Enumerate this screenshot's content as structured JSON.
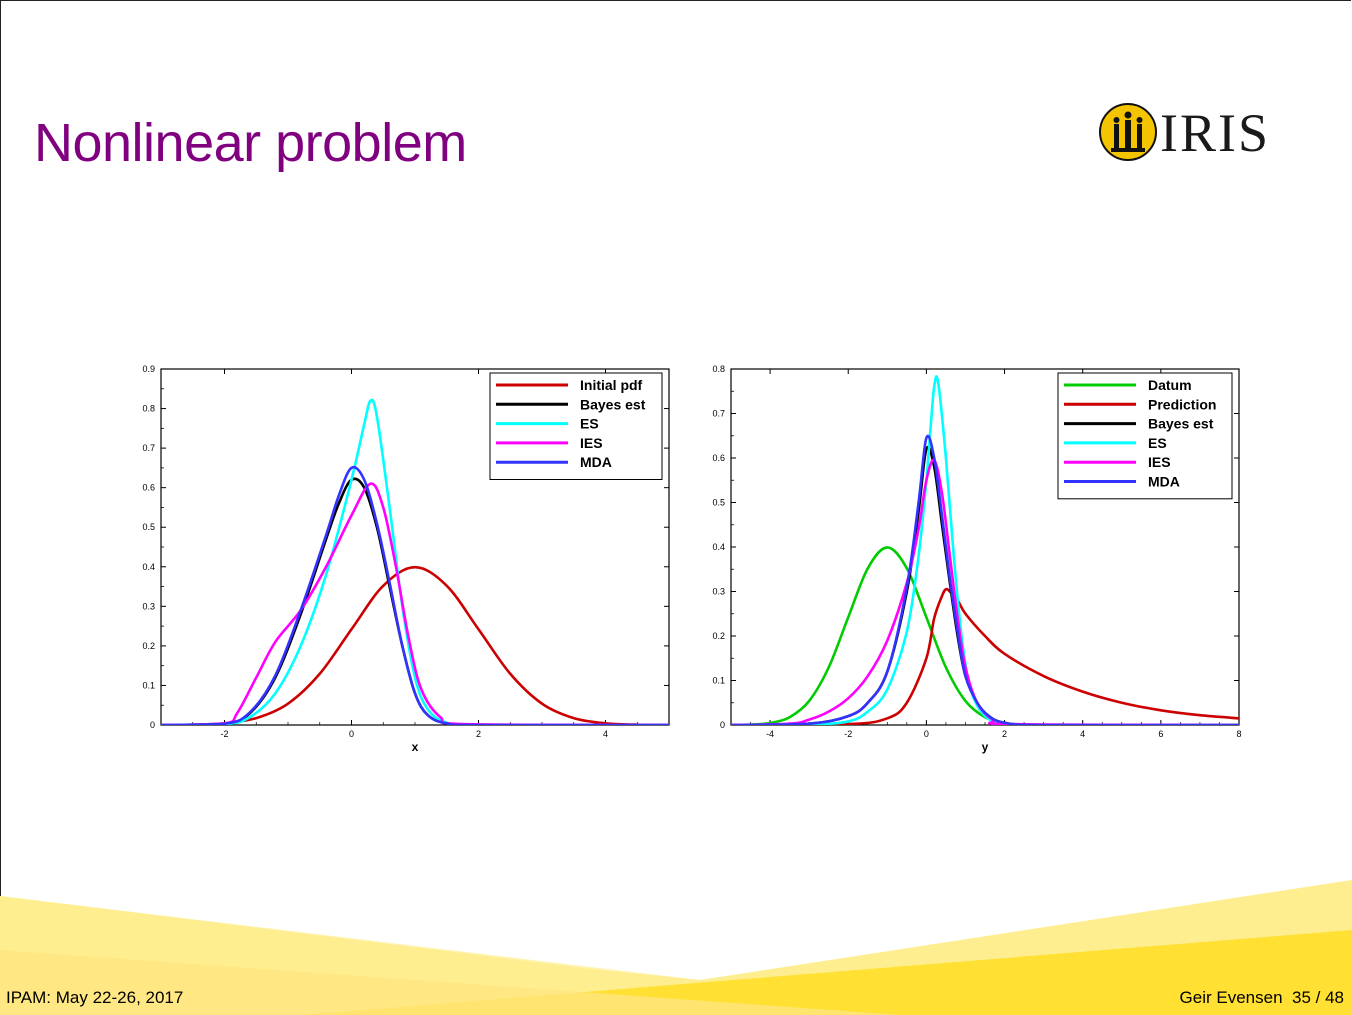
{
  "slide": {
    "title": "Nonlinear problem",
    "logo_text": "IRIS",
    "footer_left": "IPAM: May 22-26, 2017",
    "footer_author": "Geir Evensen",
    "footer_page": "35 / 48",
    "title_color": "#800080"
  },
  "chart_data": [
    {
      "type": "line",
      "xlabel": "x",
      "ylabel": "",
      "xlim": [
        -3,
        5
      ],
      "ylim": [
        0,
        0.9
      ],
      "xticks": [
        -2,
        0,
        2,
        4
      ],
      "xtick_labels": [
        "-2",
        "0",
        "2",
        "4"
      ],
      "yticks": [
        0,
        0.1,
        0.2,
        0.3,
        0.4,
        0.5,
        0.6,
        0.7,
        0.8,
        0.9
      ],
      "ytick_labels": [
        "0",
        "0.1",
        "0.2",
        "0.3",
        "0.4",
        "0.5",
        "0.6",
        "0.7",
        "0.8",
        "0.9"
      ],
      "legend_position": "top-right",
      "series": [
        {
          "name": "Initial pdf",
          "color": "#cc0000",
          "x": [
            -3,
            -2.5,
            -2,
            -1.5,
            -1,
            -0.5,
            0,
            0.5,
            1,
            1.5,
            2,
            2.5,
            3,
            3.5,
            4,
            4.5,
            5
          ],
          "y": [
            0.0001,
            0.0009,
            0.0044,
            0.0175,
            0.054,
            0.1295,
            0.242,
            0.352,
            0.399,
            0.352,
            0.242,
            0.1295,
            0.054,
            0.0175,
            0.0044,
            0.0009,
            0.0001
          ]
        },
        {
          "name": "Bayes est",
          "color": "#000000",
          "x": [
            -3,
            -2,
            -1.6,
            -1.2,
            -0.8,
            -0.4,
            -0.2,
            0,
            0.2,
            0.4,
            0.6,
            0.8,
            1,
            1.2,
            1.5,
            2,
            5
          ],
          "y": [
            0,
            0.003,
            0.03,
            0.12,
            0.28,
            0.47,
            0.56,
            0.62,
            0.6,
            0.5,
            0.35,
            0.2,
            0.08,
            0.025,
            0.004,
            0,
            0
          ]
        },
        {
          "name": "ES",
          "color": "#00ffff",
          "x": [
            -3,
            -2,
            -1.6,
            -1.2,
            -0.8,
            -0.4,
            0,
            0.2,
            0.3,
            0.4,
            0.6,
            0.8,
            1,
            1.2,
            1.5,
            2,
            5
          ],
          "y": [
            0,
            0.002,
            0.02,
            0.08,
            0.2,
            0.38,
            0.62,
            0.76,
            0.82,
            0.78,
            0.55,
            0.3,
            0.12,
            0.04,
            0.006,
            0,
            0
          ]
        },
        {
          "name": "IES",
          "color": "#ff00ff",
          "x": [
            -3,
            -2,
            -1.8,
            -1.5,
            -1.2,
            -0.8,
            -0.4,
            0,
            0.3,
            0.5,
            0.7,
            0.9,
            1.1,
            1.4,
            1.8,
            5
          ],
          "y": [
            0,
            0.004,
            0.03,
            0.12,
            0.21,
            0.29,
            0.4,
            0.53,
            0.61,
            0.55,
            0.4,
            0.22,
            0.09,
            0.02,
            0.002,
            0
          ]
        },
        {
          "name": "MDA",
          "color": "#3333ff",
          "x": [
            -3,
            -2,
            -1.6,
            -1.2,
            -0.8,
            -0.4,
            -0.2,
            0,
            0.2,
            0.4,
            0.6,
            0.8,
            1,
            1.2,
            1.5,
            2,
            5
          ],
          "y": [
            0,
            0.003,
            0.032,
            0.125,
            0.29,
            0.48,
            0.58,
            0.65,
            0.62,
            0.51,
            0.36,
            0.2,
            0.08,
            0.025,
            0.004,
            0,
            0
          ]
        }
      ]
    },
    {
      "type": "line",
      "xlabel": "y",
      "ylabel": "",
      "xlim": [
        -5,
        8
      ],
      "ylim": [
        0,
        0.8
      ],
      "xticks": [
        -4,
        -2,
        0,
        2,
        4,
        6,
        8
      ],
      "xtick_labels": [
        "-4",
        "-2",
        "0",
        "2",
        "4",
        "6",
        "8"
      ],
      "yticks": [
        0,
        0.1,
        0.2,
        0.3,
        0.4,
        0.5,
        0.6,
        0.7,
        0.8
      ],
      "ytick_labels": [
        "0",
        "0.1",
        "0.2",
        "0.3",
        "0.4",
        "0.5",
        "0.6",
        "0.7",
        "0.8"
      ],
      "legend_position": "top-right",
      "series": [
        {
          "name": "Datum",
          "color": "#00cc00",
          "x": [
            -5,
            -4.5,
            -4,
            -3.5,
            -3,
            -2.5,
            -2,
            -1.5,
            -1,
            -0.5,
            0,
            0.5,
            1,
            1.5,
            2,
            2.5,
            3,
            4,
            8
          ],
          "y": [
            0.0001,
            0.0009,
            0.0044,
            0.0175,
            0.054,
            0.1295,
            0.242,
            0.352,
            0.399,
            0.352,
            0.242,
            0.1295,
            0.054,
            0.0175,
            0.0044,
            0.0009,
            0.0001,
            0,
            0
          ]
        },
        {
          "name": "Prediction",
          "color": "#cc0000",
          "x": [
            -5,
            -2,
            -1,
            -0.5,
            0,
            0.2,
            0.4,
            0.5,
            0.6,
            0.8,
            1,
            1.5,
            2,
            3,
            4,
            5,
            6,
            7,
            8
          ],
          "y": [
            0,
            0.002,
            0.015,
            0.05,
            0.15,
            0.24,
            0.29,
            0.305,
            0.3,
            0.28,
            0.25,
            0.2,
            0.16,
            0.11,
            0.075,
            0.05,
            0.033,
            0.022,
            0.015
          ]
        },
        {
          "name": "Bayes est",
          "color": "#000000",
          "x": [
            -5,
            -3,
            -2,
            -1.5,
            -1,
            -0.5,
            -0.2,
            0,
            0.2,
            0.4,
            0.6,
            0.8,
            1,
            1.3,
            1.6,
            2,
            3,
            8
          ],
          "y": [
            0,
            0.003,
            0.02,
            0.05,
            0.12,
            0.3,
            0.48,
            0.62,
            0.58,
            0.45,
            0.32,
            0.2,
            0.11,
            0.05,
            0.02,
            0.005,
            0,
            0
          ]
        },
        {
          "name": "ES",
          "color": "#00ffff",
          "x": [
            -5,
            -3,
            -2,
            -1.5,
            -1,
            -0.5,
            -0.2,
            0,
            0.1,
            0.2,
            0.3,
            0.5,
            0.7,
            0.9,
            1.1,
            1.4,
            1.8,
            2.5,
            8
          ],
          "y": [
            0,
            0.001,
            0.008,
            0.03,
            0.08,
            0.21,
            0.38,
            0.55,
            0.66,
            0.76,
            0.77,
            0.6,
            0.38,
            0.2,
            0.09,
            0.03,
            0.006,
            0,
            0
          ]
        },
        {
          "name": "IES",
          "color": "#ff00ff",
          "x": [
            -5,
            -3.5,
            -3,
            -2.5,
            -2,
            -1.5,
            -1,
            -0.5,
            -0.2,
            0,
            0.2,
            0.4,
            0.6,
            0.8,
            1,
            1.3,
            1.7,
            2.2,
            8
          ],
          "y": [
            0,
            0.003,
            0.012,
            0.03,
            0.06,
            0.11,
            0.19,
            0.32,
            0.44,
            0.55,
            0.595,
            0.52,
            0.38,
            0.24,
            0.13,
            0.05,
            0.012,
            0.002,
            0
          ]
        },
        {
          "name": "MDA",
          "color": "#3333ff",
          "x": [
            -5,
            -3,
            -2,
            -1.5,
            -1,
            -0.5,
            -0.2,
            0,
            0.2,
            0.4,
            0.6,
            0.8,
            1,
            1.3,
            1.6,
            2,
            3,
            8
          ],
          "y": [
            0,
            0.003,
            0.02,
            0.05,
            0.12,
            0.31,
            0.5,
            0.645,
            0.6,
            0.47,
            0.33,
            0.21,
            0.11,
            0.05,
            0.02,
            0.005,
            0,
            0
          ]
        }
      ]
    }
  ]
}
